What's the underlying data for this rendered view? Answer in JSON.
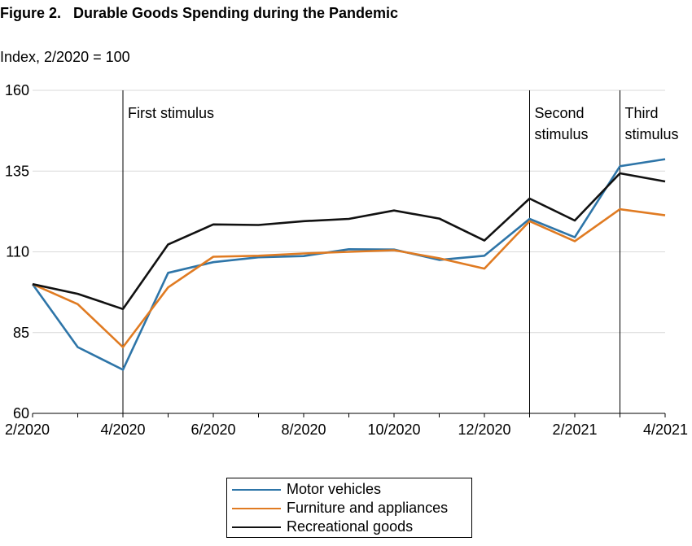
{
  "title": "Figure 2.   Durable Goods Spending during the Pandemic",
  "subtitle": "Index, 2/2020 = 100",
  "chart_data": {
    "type": "line",
    "x": [
      "2/2020",
      "3/2020",
      "4/2020",
      "5/2020",
      "6/2020",
      "7/2020",
      "8/2020",
      "9/2020",
      "10/2020",
      "11/2020",
      "12/2020",
      "1/2021",
      "2/2021",
      "3/2021",
      "4/2021"
    ],
    "xticks": [
      "2/2020",
      "4/2020",
      "6/2020",
      "8/2020",
      "10/2020",
      "12/2020",
      "2/2021",
      "4/2021"
    ],
    "yticks": [
      60,
      85,
      110,
      135,
      160
    ],
    "ylim": [
      60,
      160
    ],
    "grid": "horizontal",
    "legend": "bottom-center",
    "series": [
      {
        "name": "Motor vehicles",
        "color": "#2E75A8",
        "values": [
          100,
          80.5,
          73.5,
          103.5,
          106.8,
          108.3,
          108.7,
          110.8,
          110.7,
          107.5,
          108.8,
          120.2,
          114.5,
          136.5,
          138.7
        ]
      },
      {
        "name": "Furniture and appliances",
        "color": "#E07B22",
        "values": [
          100,
          93.8,
          80.5,
          99,
          108.5,
          108.8,
          109.5,
          110,
          110.5,
          108,
          104.8,
          119.5,
          113.3,
          123.2,
          121.3
        ]
      },
      {
        "name": "Recreational goods",
        "color": "#111111",
        "values": [
          100,
          97,
          92.3,
          112.3,
          118.5,
          118.3,
          119.5,
          120.2,
          122.8,
          120.3,
          113.5,
          126.5,
          119.7,
          134.3,
          131.8
        ]
      }
    ],
    "annotations": [
      {
        "x": "4/2020",
        "lines": [
          "First stimulus"
        ]
      },
      {
        "x": "1/2021",
        "lines": [
          "Second",
          "stimulus"
        ]
      },
      {
        "x": "3/2021",
        "lines": [
          "Third",
          "stimulus"
        ]
      }
    ]
  }
}
